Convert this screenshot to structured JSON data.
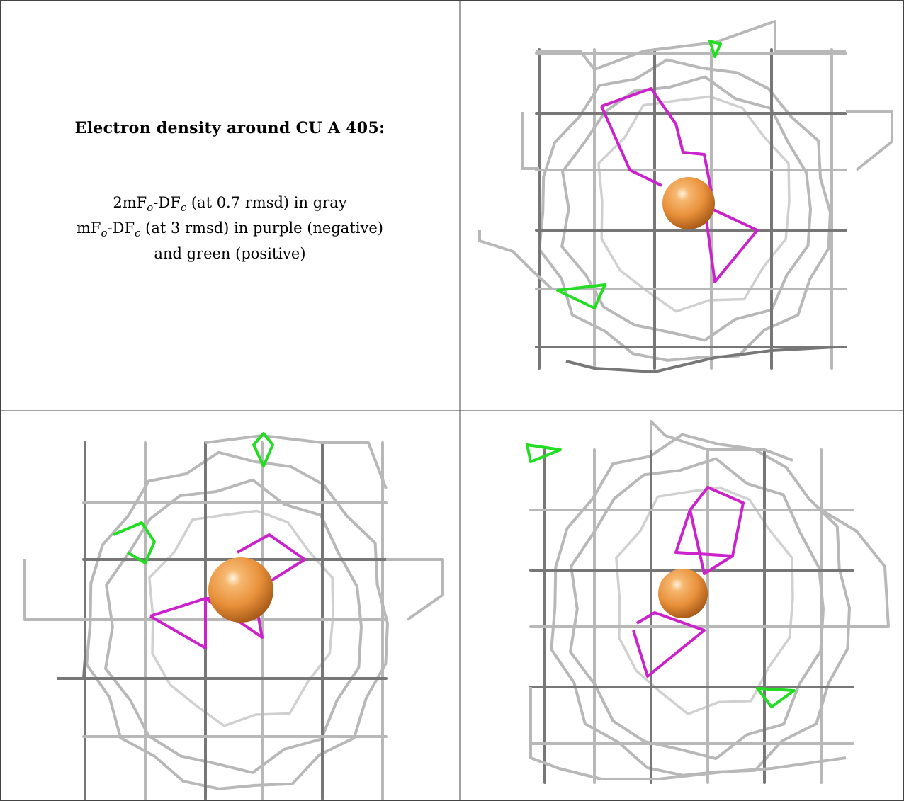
{
  "title": "Electron density around CU A 405:",
  "legend": {
    "line1": {
      "map": "2mF",
      "sub_o": "o",
      "dash": "-DF",
      "sub_c": "c",
      "rest": " (at 0.7 rmsd) in gray"
    },
    "line2": {
      "map": "mF",
      "sub_o": "o",
      "dash": "-DF",
      "sub_c": "c",
      "rest": " (at 3 rmsd) in purple (negative)"
    },
    "line3": "and green (positive)"
  },
  "colors": {
    "mesh_gray": "#b8b8b8",
    "mesh_dark": "#777777",
    "negative": "#cc22cc",
    "positive": "#22dd22",
    "atom": "#e8903a",
    "border": "#444444"
  },
  "views": [
    {
      "name": "view-1",
      "atom": "CU A 405"
    },
    {
      "name": "view-2",
      "atom": "CU A 405"
    },
    {
      "name": "view-3",
      "atom": "CU A 405"
    }
  ]
}
